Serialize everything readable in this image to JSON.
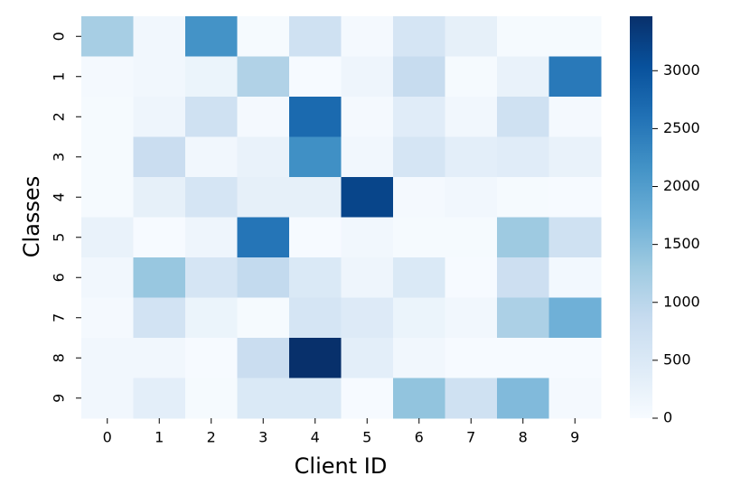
{
  "chart_data": {
    "type": "heatmap",
    "x_label": "Client ID",
    "y_label": "Classes",
    "x_categories": [
      "0",
      "1",
      "2",
      "3",
      "4",
      "5",
      "6",
      "7",
      "8",
      "9"
    ],
    "y_categories": [
      "0",
      "1",
      "2",
      "3",
      "4",
      "5",
      "6",
      "7",
      "8",
      "9"
    ],
    "values": [
      [
        1200,
        100,
        2150,
        30,
        700,
        50,
        600,
        300,
        30,
        30
      ],
      [
        50,
        100,
        200,
        1100,
        20,
        150,
        850,
        30,
        250,
        2500
      ],
      [
        30,
        150,
        700,
        50,
        2700,
        50,
        400,
        100,
        700,
        50
      ],
      [
        30,
        800,
        100,
        250,
        2200,
        100,
        600,
        350,
        400,
        250
      ],
      [
        30,
        300,
        600,
        300,
        300,
        3200,
        50,
        100,
        30,
        20
      ],
      [
        250,
        20,
        150,
        2550,
        20,
        100,
        30,
        30,
        1300,
        700
      ],
      [
        100,
        1350,
        600,
        900,
        500,
        150,
        500,
        20,
        750,
        80
      ],
      [
        50,
        650,
        200,
        30,
        600,
        450,
        200,
        100,
        1150,
        1700
      ],
      [
        100,
        100,
        20,
        800,
        3470,
        350,
        100,
        20,
        20,
        20
      ],
      [
        100,
        350,
        30,
        500,
        500,
        20,
        1400,
        700,
        1550,
        50
      ]
    ],
    "colormap": "Blues",
    "colorbar_lim": [
      0,
      3470
    ],
    "colorbar_ticks": [
      0,
      500,
      1000,
      1500,
      2000,
      2500,
      3000
    ]
  }
}
